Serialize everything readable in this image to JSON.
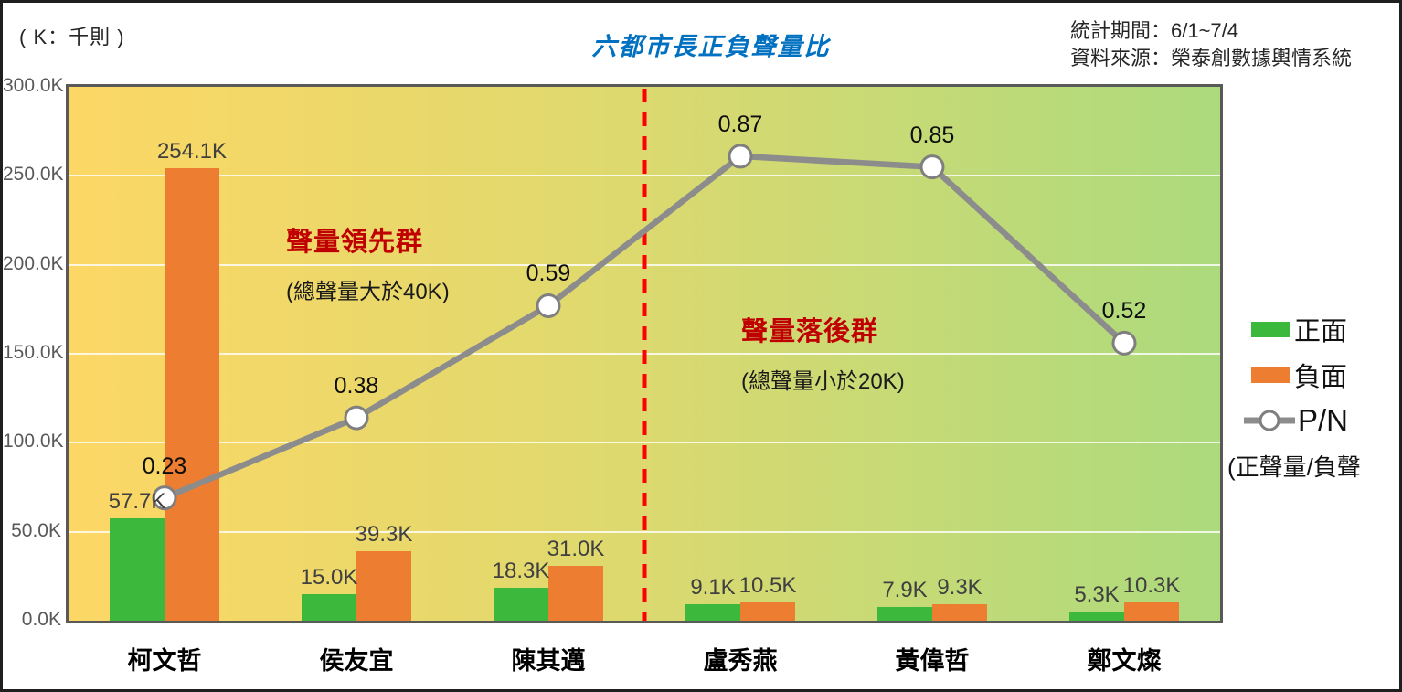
{
  "header": {
    "unit_note": "( K：千則 )",
    "title": "六都市長正負聲量比",
    "period": "統計期間：6/1~7/4",
    "source": "資料來源：榮泰創數據輿情系統"
  },
  "chart_data": {
    "type": "combo-bar-line",
    "title": "六都市長正負聲量比",
    "categories": [
      "柯文哲",
      "侯友宜",
      "陳其邁",
      "盧秀燕",
      "黃偉哲",
      "鄭文燦"
    ],
    "series": [
      {
        "name": "正面",
        "type": "bar",
        "color": "#3CB83C",
        "axis": "primary",
        "values": [
          57.7,
          15.0,
          18.3,
          9.1,
          7.9,
          5.3
        ],
        "labels": [
          "57.7K",
          "15.0K",
          "18.3K",
          "9.1K",
          "7.9K",
          "5.3K"
        ]
      },
      {
        "name": "負面",
        "type": "bar",
        "color": "#EC7D31",
        "axis": "primary",
        "values": [
          254.1,
          39.3,
          31.0,
          10.5,
          9.3,
          10.3
        ],
        "labels": [
          "254.1K",
          "39.3K",
          "31.0K",
          "10.5K",
          "9.3K",
          "10.3K"
        ]
      },
      {
        "name": "P/N",
        "type": "line",
        "color": "#8C8C8C",
        "marker": "white-circle",
        "axis": "secondary",
        "values": [
          0.23,
          0.38,
          0.59,
          0.87,
          0.85,
          0.52
        ],
        "labels": [
          "0.23",
          "0.38",
          "0.59",
          "0.87",
          "0.85",
          "0.52"
        ]
      }
    ],
    "primary_axis": {
      "min": 0,
      "max": 300,
      "tick_step": 50,
      "tick_labels": [
        "0.0K",
        "50.0K",
        "100.0K",
        "150.0K",
        "200.0K",
        "250.0K",
        "300.0K"
      ]
    },
    "secondary_axis": {
      "min": 0,
      "max": 1.0,
      "visible": false
    },
    "grid": true,
    "background_gradient": [
      "#FCD765",
      "#ACDA7D"
    ],
    "divider": {
      "after_category_index": 2,
      "color": "#FF0000",
      "style": "dashed"
    },
    "annotations": [
      {
        "title": "聲量領先群",
        "subtitle": "(總聲量大於40K)",
        "color": "#C00000",
        "side": "left"
      },
      {
        "title": "聲量落後群",
        "subtitle": "(總聲量小於20K)",
        "color": "#C00000",
        "side": "right"
      }
    ]
  },
  "legend": {
    "items": [
      {
        "label": "正面",
        "swatch": "rect",
        "color": "#3CB83C"
      },
      {
        "label": "負面",
        "swatch": "rect",
        "color": "#EC7D31"
      },
      {
        "label": "P/N",
        "swatch": "line-marker",
        "color": "#8C8C8C"
      }
    ],
    "note": "(正聲量/負聲"
  }
}
